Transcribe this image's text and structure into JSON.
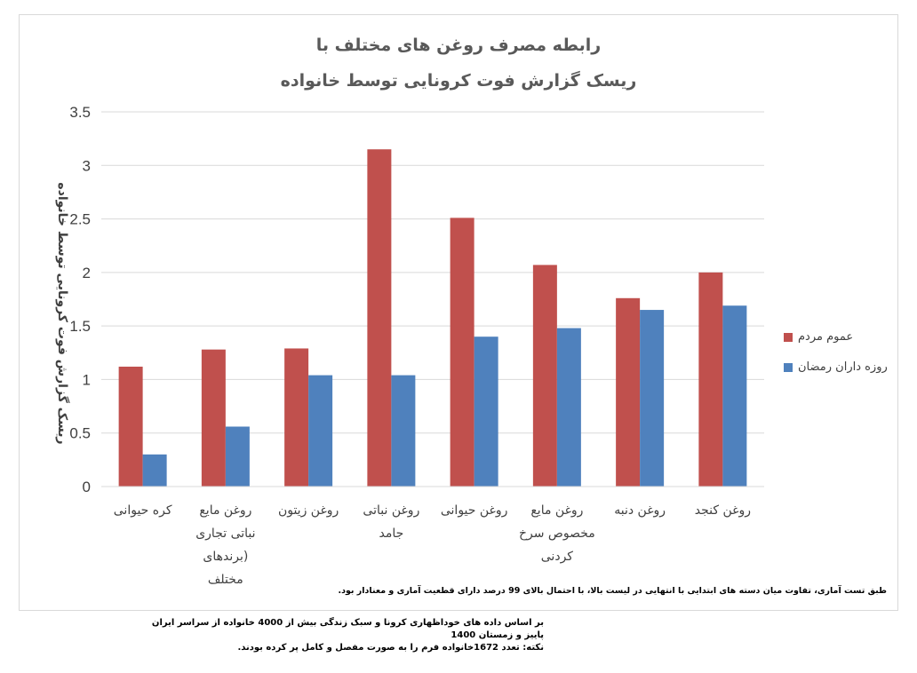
{
  "chart_data": {
    "type": "bar",
    "title_lines": [
      "رابطه مصرف روغن های مختلف با",
      "ریسک گزارش فوت کرونایی توسط خانواده"
    ],
    "ylabel": "ریسک گزارش فوت کرونایی توسط خانواده",
    "xlabel": "",
    "ylim": [
      0,
      3.5
    ],
    "yticks": [
      "0",
      "0.5",
      "1",
      "1.5",
      "2",
      "2.5",
      "3",
      "3.5"
    ],
    "ytick_values": [
      0,
      0.5,
      1,
      1.5,
      2,
      2.5,
      3,
      3.5
    ],
    "grid": true,
    "legend_position": "right",
    "categories": [
      [
        "کره حیوانی"
      ],
      [
        "روغن مایع",
        "نباتی تجاری",
        "(برندهای",
        "مختلف"
      ],
      [
        "روغن زیتون"
      ],
      [
        "روغن نباتی",
        "جامد"
      ],
      [
        "روغن حیوانی"
      ],
      [
        "روغن مایع",
        "مخصوص سرخ",
        "کردنی"
      ],
      [
        "روغن دنبه"
      ],
      [
        "روغن کنجد"
      ]
    ],
    "series": [
      {
        "name": "عموم مردم",
        "color": "#c0504d",
        "values": [
          1.12,
          1.28,
          1.29,
          3.15,
          2.51,
          2.07,
          1.76,
          2.0
        ]
      },
      {
        "name": "روزه داران رمضان",
        "color": "#4f81bd",
        "values": [
          0.3,
          0.56,
          1.04,
          1.04,
          1.4,
          1.48,
          1.65,
          1.69
        ]
      }
    ]
  },
  "note": "طبق تست آماری، تفاوت میان دسته های ابتدایی با انتهایی در لیست بالا، با احتمال بالای 99 درصد دارای قطعیت آماری و معنادار بود.",
  "footnotes": [
    "بر اساس داده های خوداظهاری کرونا و سبک زندگی بیش از  4000 خانواده از سراسر ایران",
    "پاییز و زمستان 1400",
    "نکته:   تعدد  1672خانواده فرم را به صورت مفصل و کامل پر کرده بودند."
  ]
}
